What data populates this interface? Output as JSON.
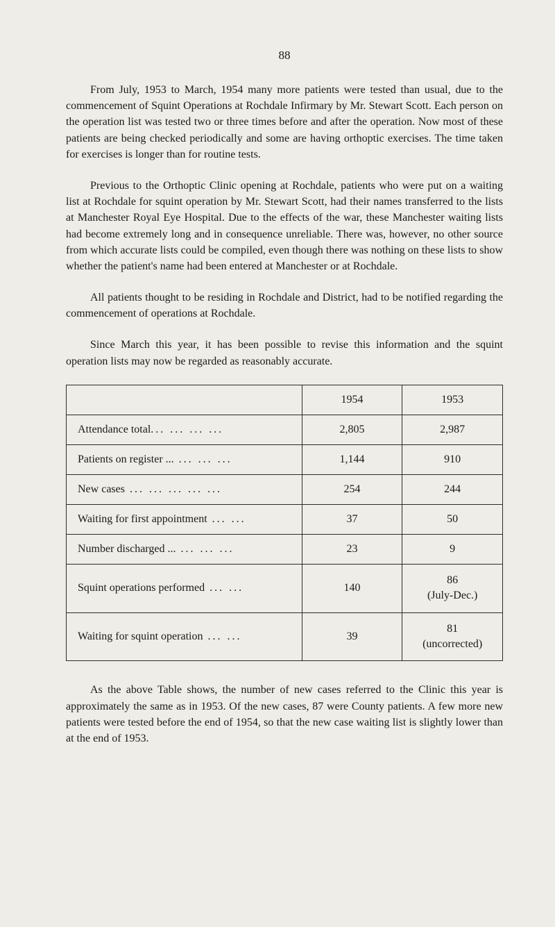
{
  "page_number": "88",
  "paragraphs": {
    "p1": "From July, 1953 to March, 1954 many more patients were tested than usual, due to the commencement of Squint Operations at Rochdale Infirmary by Mr. Stewart Scott. Each person on the operation list was tested two or three times before and after the operation. Now most of these patients are being checked periodically and some are having orthoptic exercises. The time taken for exercises is longer than for routine tests.",
    "p2": "Previous to the Orthoptic Clinic opening at Rochdale, patients who were put on a waiting list at Rochdale for squint operation by Mr. Stewart Scott, had their names transferred to the lists at Manchester Royal Eye Hospital. Due to the effects of the war, these Manchester waiting lists had become extremely long and in consequence unreliable. There was, however, no other source from which accurate lists could be compiled, even though there was nothing on these lists to show whether the patient's name had been entered at Manchester or at Rochdale.",
    "p3": "All patients thought to be residing in Rochdale and District, had to be notified regarding the commencement of operations at Rochdale.",
    "p4": "Since March this year, it has been possible to revise this information and the squint operation lists may now be regarded as reasonably accurate.",
    "p5": "As the above Table shows, the number of new cases referred to the Clinic this year is approximately the same as in 1953. Of the new cases, 87 were County patients. A few more new patients were tested before the end of 1954, so that the new case waiting list is slightly lower than at the end of 1953."
  },
  "table": {
    "header": {
      "col1": "",
      "col2": "1954",
      "col3": "1953"
    },
    "rows": [
      {
        "label": "Attendance total",
        "dots": "...     ...     ...     ...",
        "v1954": "2,805",
        "v1953": "2,987"
      },
      {
        "label": "Patients on register ...",
        "dots": "     ...     ...     ...",
        "v1954": "1,144",
        "v1953": "910"
      },
      {
        "label": "New cases",
        "dots": "     ...     ...     ...     ...     ...",
        "v1954": "254",
        "v1953": "244"
      },
      {
        "label": "Waiting for first appointment",
        "dots": "          ...     ...",
        "v1954": "37",
        "v1953": "50"
      },
      {
        "label": "Number discharged ...",
        "dots": "     ...     ...     ...",
        "v1954": "23",
        "v1953": "9"
      },
      {
        "label": "Squint operations performed",
        "dots": "          ...     ...",
        "v1954": "140",
        "v1953": "86\n(July-Dec.)"
      },
      {
        "label": "Waiting for squint operation",
        "dots": "          ...     ...",
        "v1954": "39",
        "v1953": "81\n(uncorrected)"
      }
    ]
  }
}
